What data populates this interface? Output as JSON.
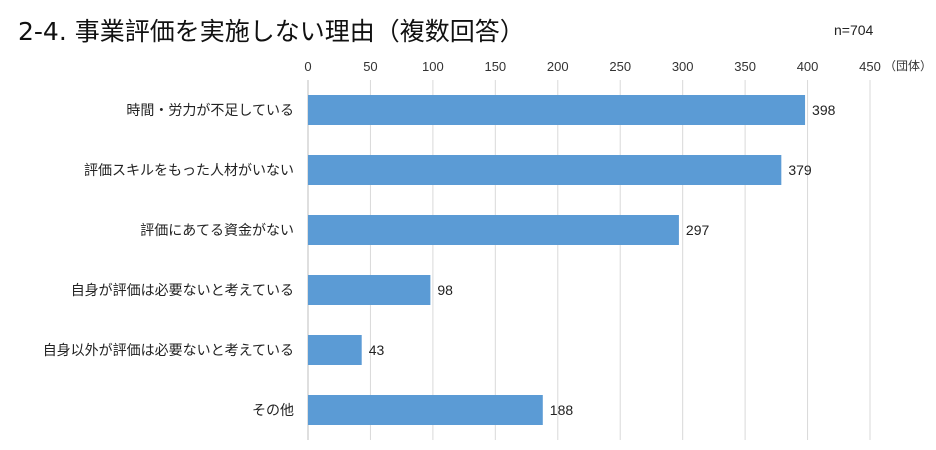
{
  "header": {
    "title": "2-4. 事業評価を実施しない理由（複数回答）",
    "sample_size": "n=704"
  },
  "chart_data": {
    "type": "bar",
    "orientation": "horizontal",
    "title": "2-4. 事業評価を実施しない理由（複数回答）",
    "unit": "（団体）",
    "categories": [
      "時間・労力が不足している",
      "評価スキルをもった人材がいない",
      "評価にあてる資金がない",
      "自身が評価は必要ないと考えている",
      "自身以外が評価は必要ないと考えている",
      "その他"
    ],
    "values": [
      398,
      379,
      297,
      98,
      43,
      188
    ],
    "xlim": [
      0,
      450
    ],
    "xticks": [
      0,
      50,
      100,
      150,
      200,
      250,
      300,
      350,
      400,
      450
    ],
    "x_axis_position": "top",
    "grid": true,
    "data_labels": true,
    "bar_color": "#5b9bd5"
  }
}
